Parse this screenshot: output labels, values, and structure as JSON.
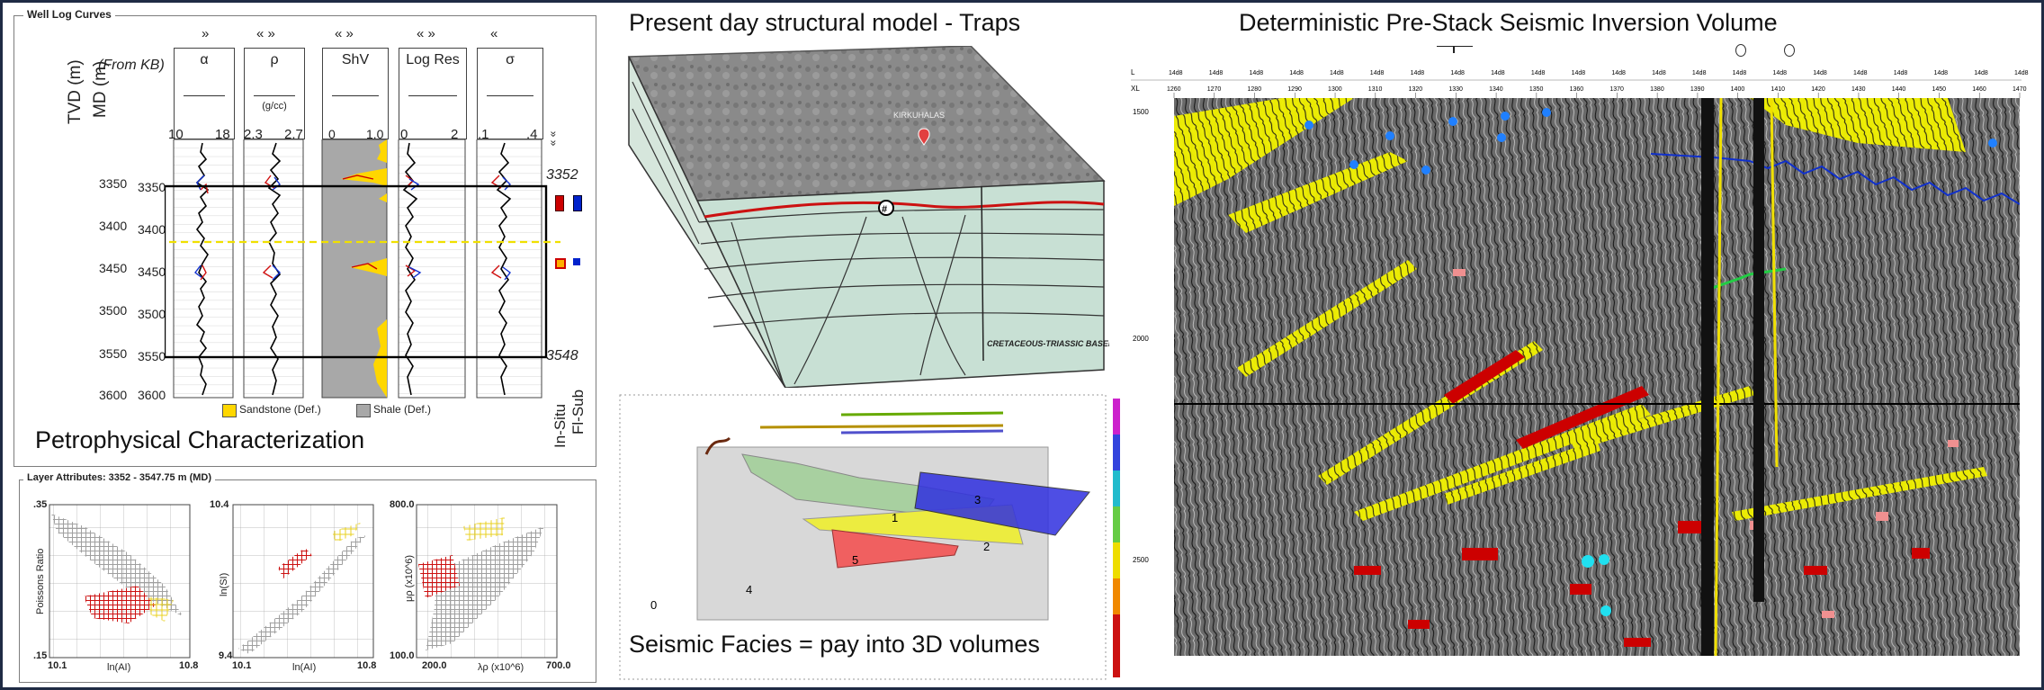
{
  "well_log": {
    "group_title": "Well Log Curves",
    "from_kb": "(From KB)",
    "tvd_label": "TVD (m)",
    "md_label": "MD (m)",
    "depths": [
      "3350",
      "3400",
      "3450",
      "3500",
      "3550",
      "3600"
    ],
    "md_depths": [
      "3350",
      "3400",
      "3450",
      "3500",
      "3550",
      "3600"
    ],
    "tracks": [
      {
        "name": "α",
        "unit": "",
        "min": "10",
        "max": "18",
        "nav": "»"
      },
      {
        "name": "ρ",
        "unit": "(g/cc)",
        "min": "2.3",
        "max": "2.7",
        "nav": "« »"
      },
      {
        "name": "ShV",
        "unit": "",
        "min": "0",
        "max": "1.0",
        "nav": "« »"
      },
      {
        "name": "Log Res",
        "unit": "",
        "min": "0",
        "max": "2",
        "nav": "« »"
      },
      {
        "name": "σ",
        "unit": "",
        "min": ".1",
        "max": ".4",
        "nav": "«"
      }
    ],
    "marker_top": "3352",
    "marker_bottom": "3548",
    "legend": {
      "sandstone": "Sandstone (Def.)",
      "shale": "Shale (Def.)"
    },
    "side_labels": {
      "in_situ": "In-Situ",
      "fl_sub": "Fl-Sub",
      "expand": "»  »"
    },
    "colors": {
      "sandstone": "#ffd700",
      "shale": "#a8a8a8",
      "in_situ": "#cc0000",
      "fl_sub": "#0022cc"
    }
  },
  "petro_label": "Petrophysical Characterization",
  "layer_attributes": {
    "title": "Layer Attributes: 3352 - 3547.75 m (MD)",
    "plots": [
      {
        "ylabel": "Poissons Ratio",
        "xlabel": "ln(AI)",
        "ymax": ".35",
        "ymin": ".15",
        "xmin": "10.1",
        "xmax": "10.8"
      },
      {
        "ylabel": "ln(SI)",
        "xlabel": "ln(AI)",
        "ymax": "10.4",
        "ymin": "9.4",
        "xmin": "10.1",
        "xmax": "10.8"
      },
      {
        "ylabel": "μρ (x10^6)",
        "xlabel": "λρ (x10^6)",
        "ymax": "800.0",
        "ymin": "100.0",
        "xmin": "200.0",
        "xmax": "700.0"
      }
    ]
  },
  "structural": {
    "title": "Present day structural model - Traps",
    "map_label": "KIRKUHALAS",
    "trap_number": "#",
    "basement": "CRETACEOUS-TRIASSIC BASEMENT"
  },
  "facies": {
    "caption": "Seismic Facies = pay into 3D volumes",
    "labels": [
      "1",
      "2",
      "3",
      "4",
      "5",
      "0"
    ]
  },
  "inversion": {
    "title": "Deterministic Pre-Stack Seismic Inversion Volume",
    "row1_label": "L",
    "row2_label": "XL",
    "inline_value": "14d8",
    "xl_ticks": [
      "1260",
      "1270",
      "1280",
      "1290",
      "1300",
      "1310",
      "1320",
      "1330",
      "1340",
      "1350",
      "1360",
      "1370",
      "1380",
      "1390",
      "1400",
      "1410",
      "1420",
      "1430",
      "1440",
      "1450",
      "1460",
      "1470"
    ],
    "time_ticks": [
      "1500",
      "2000",
      "2500"
    ]
  }
}
